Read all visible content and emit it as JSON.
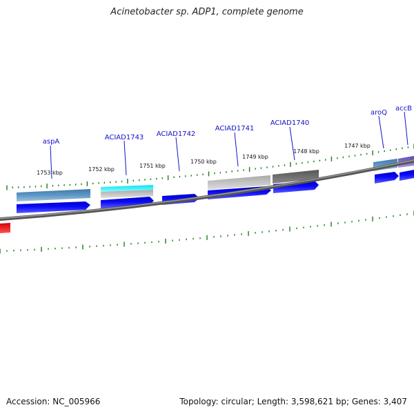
{
  "title": "Acinetobacter sp. ADP1, complete genome",
  "footer": {
    "accession": "Accession: NC_005966",
    "summary": "Topology: circular; Length: 3,598,621 bp; Genes: 3,407"
  },
  "colors": {
    "gene_label": "#1010c8",
    "tick": "#1a7a1a",
    "cds_forward": "#0a0af0",
    "backbone": "#6e6e6e",
    "marker": "#e01010"
  },
  "scale_labels": [
    "1753 kbp",
    "1752 kbp",
    "1751 kbp",
    "1750 kbp",
    "1749 kbp",
    "1748 kbp",
    "1747 kbp"
  ],
  "gene_labels": [
    "aspA",
    "ACIAD1743",
    "ACIAD1742",
    "ACIAD1741",
    "ACIAD1740",
    "aroQ",
    "accB"
  ]
}
